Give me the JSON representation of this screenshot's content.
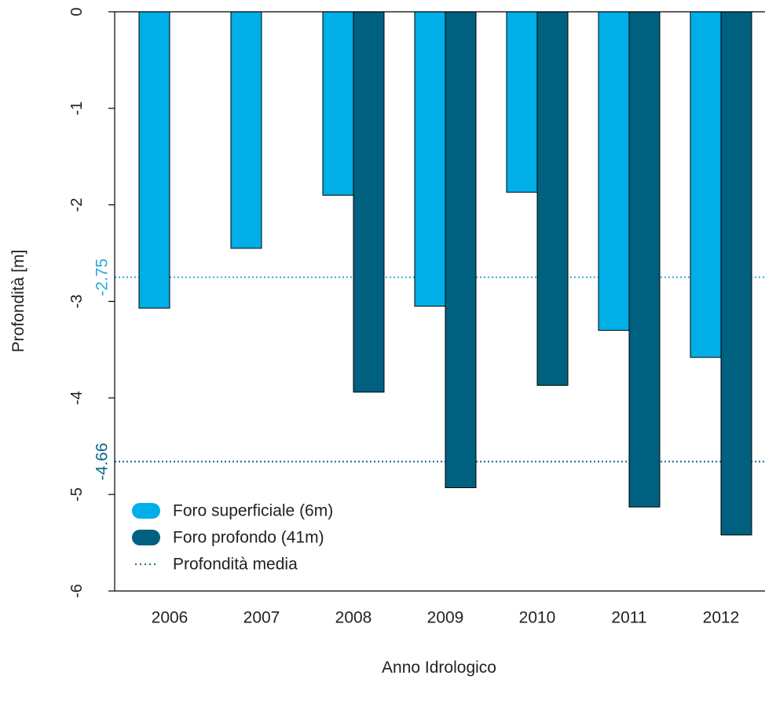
{
  "chart_data": {
    "type": "bar",
    "title": "",
    "xlabel": "Anno Idrologico",
    "ylabel": "Profondità [m]",
    "ylim": [
      -6,
      0
    ],
    "yticks": [
      "0",
      "-1",
      "-2",
      "-3",
      "-4",
      "-5",
      "-6"
    ],
    "categories": [
      "2006",
      "2007",
      "2008",
      "2009",
      "2010",
      "2011",
      "2012"
    ],
    "series": [
      {
        "name": "Foro superficiale (6m)",
        "color": "#00aee8",
        "values": [
          -3.07,
          -2.45,
          -1.9,
          -3.05,
          -1.87,
          -3.3,
          -3.58
        ]
      },
      {
        "name": "Foro profondo (41m)",
        "color": "#006080",
        "values": [
          null,
          null,
          -3.94,
          -4.93,
          -3.87,
          -5.13,
          -5.42
        ]
      }
    ],
    "mean_lines": [
      {
        "value": -2.75,
        "label": "-2.75",
        "color": "#2aa9de"
      },
      {
        "value": -4.66,
        "label": "-4.66",
        "color": "#0e6887"
      }
    ],
    "legend": {
      "position": "bottom-left",
      "items": [
        {
          "label": "Foro superficiale (6m)",
          "color": "#00aee8",
          "kind": "fill"
        },
        {
          "label": "Foro profondo (41m)",
          "color": "#006080",
          "kind": "fill"
        },
        {
          "label": "Profondità media",
          "color": "#1a6f8f",
          "kind": "dotted"
        }
      ]
    },
    "grid": false
  }
}
